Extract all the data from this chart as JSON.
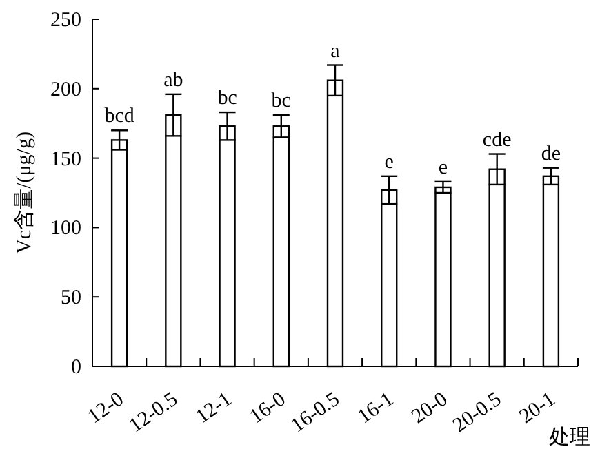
{
  "chart_data": {
    "type": "bar",
    "ylabel": "Vc含量/(μg/g)",
    "xlabel": "处理",
    "categories": [
      "12-0",
      "12-0.5",
      "12-1",
      "16-0",
      "16-0.5",
      "16-1",
      "20-0",
      "20-0.5",
      "20-1"
    ],
    "values": [
      163,
      181,
      173,
      173,
      206,
      127,
      129,
      142,
      137
    ],
    "errors": [
      7,
      15,
      10,
      8,
      11,
      10,
      4,
      11,
      6
    ],
    "color": "#ffffff",
    "ylim": [
      0,
      250
    ],
    "yticks": [
      0,
      50,
      100,
      150,
      200,
      250
    ],
    "grid": false,
    "annotations": [
      {
        "text": "bcd",
        "x": "12-0",
        "y": 170
      },
      {
        "text": "ab",
        "x": "12-0.5",
        "y": 196
      },
      {
        "text": "bc",
        "x": "12-1",
        "y": 183
      },
      {
        "text": "bc",
        "x": "16-0",
        "y": 181
      },
      {
        "text": "a",
        "x": "16-0.5",
        "y": 217
      },
      {
        "text": "e",
        "x": "16-1",
        "y": 137
      },
      {
        "text": "e",
        "x": "20-0",
        "y": 133
      },
      {
        "text": "cde",
        "x": "20-0.5",
        "y": 153
      },
      {
        "text": "de",
        "x": "20-1",
        "y": 143
      }
    ]
  }
}
